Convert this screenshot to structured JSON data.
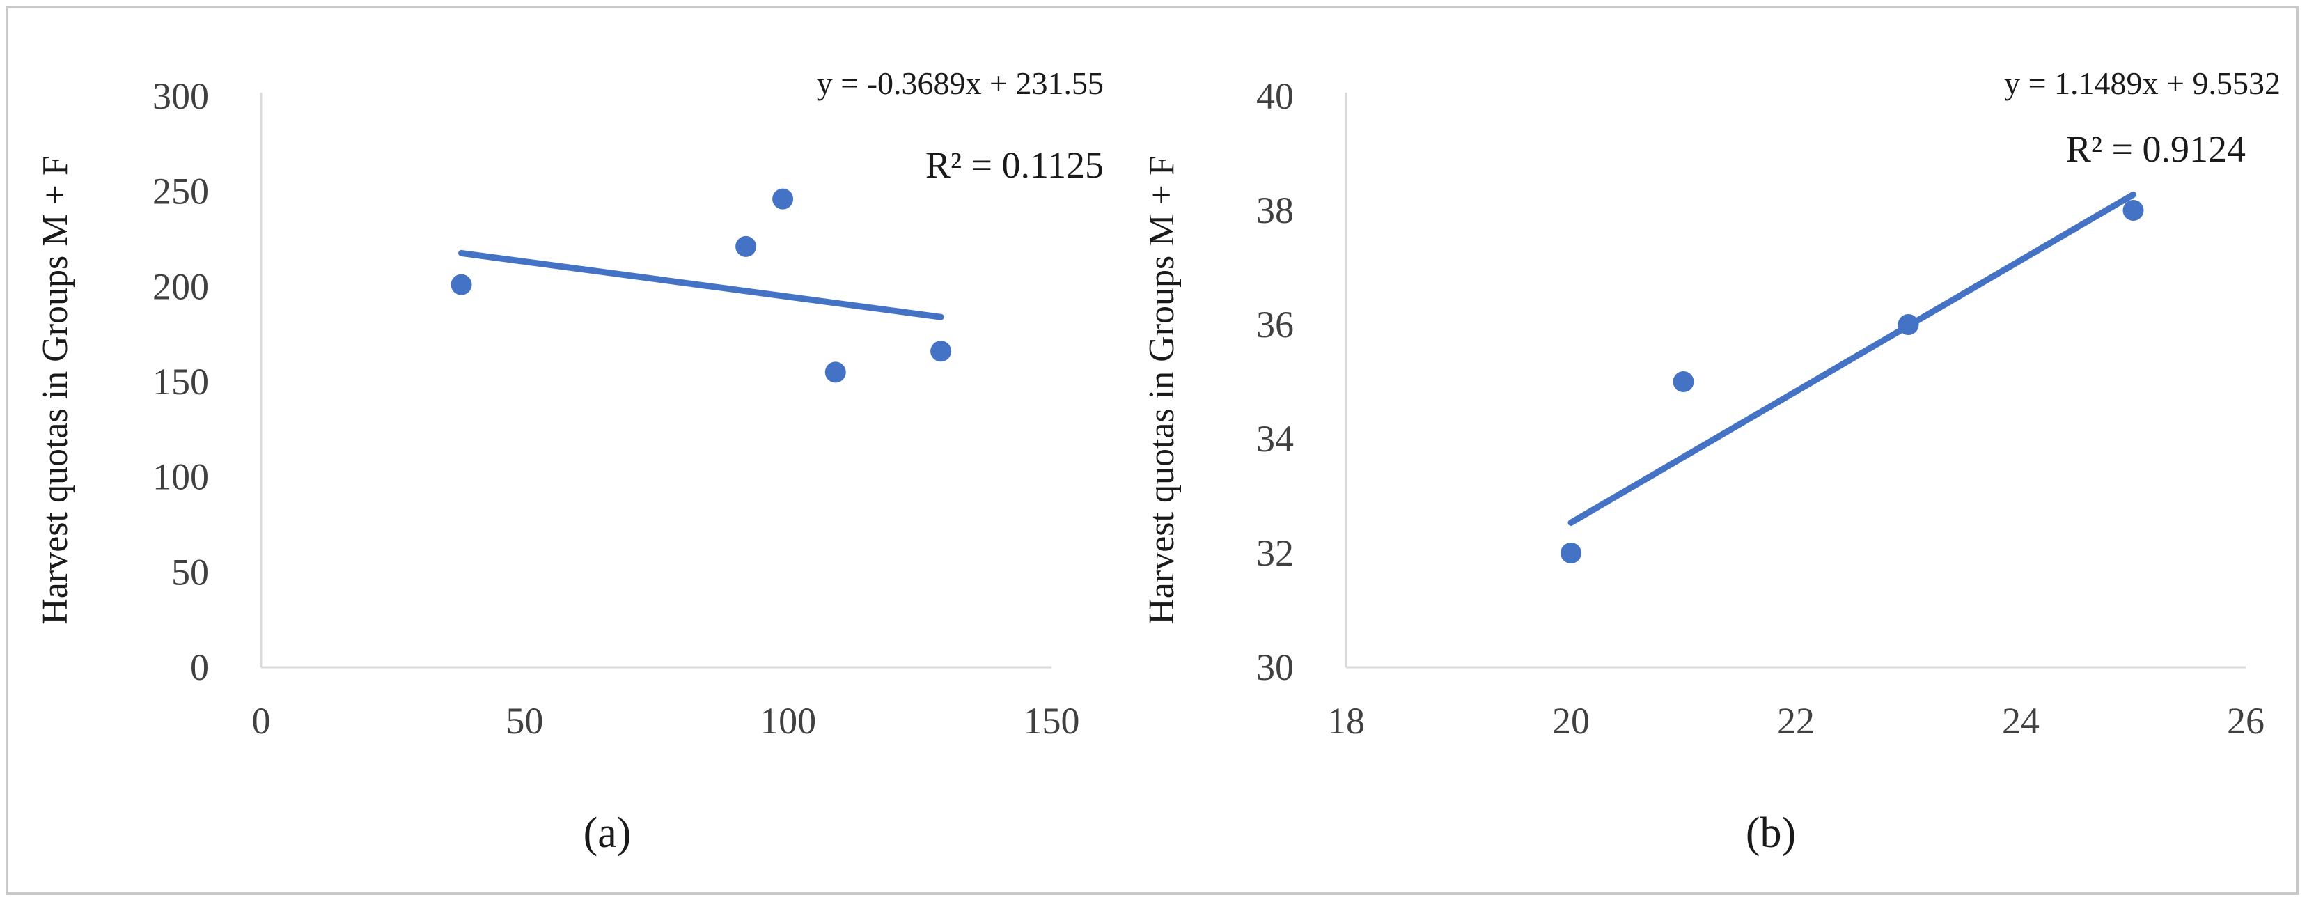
{
  "chart_data": [
    {
      "type": "scatter",
      "panel_label": "(a)",
      "ylabel": "Harvest quotas in Groups M + F",
      "xlabel": "",
      "xlim": [
        0,
        150
      ],
      "ylim": [
        0,
        300
      ],
      "xticks": [
        "0",
        "50",
        "100",
        "150"
      ],
      "yticks": [
        "0",
        "50",
        "100",
        "150",
        "200",
        "250",
        "300"
      ],
      "points": [
        {
          "x": 38,
          "y": 201
        },
        {
          "x": 92,
          "y": 221
        },
        {
          "x": 99,
          "y": 246
        },
        {
          "x": 109,
          "y": 155
        },
        {
          "x": 129,
          "y": 166
        }
      ],
      "trendline": {
        "slope": -0.3689,
        "intercept": 231.55,
        "x_range": [
          38,
          129
        ]
      },
      "equation": "y = -0.3689x + 231.55",
      "r2": "R² = 0.1125",
      "grid": false,
      "color": "#4472c4"
    },
    {
      "type": "scatter",
      "panel_label": "(b)",
      "ylabel": "Harvest quotas in Groups M + F",
      "xlabel": "",
      "xlim": [
        18,
        26
      ],
      "ylim": [
        30,
        40
      ],
      "xticks": [
        "18",
        "20",
        "22",
        "24",
        "26"
      ],
      "yticks": [
        "30",
        "32",
        "34",
        "36",
        "38",
        "40"
      ],
      "points": [
        {
          "x": 20,
          "y": 32
        },
        {
          "x": 21,
          "y": 35
        },
        {
          "x": 23,
          "y": 36
        },
        {
          "x": 25,
          "y": 38
        }
      ],
      "trendline": {
        "slope": 1.1489,
        "intercept": 9.5532,
        "x_range": [
          20,
          25
        ]
      },
      "equation": "y = 1.1489x + 9.5532",
      "r2": "R² = 0.9124",
      "grid": false,
      "color": "#4472c4"
    }
  ]
}
